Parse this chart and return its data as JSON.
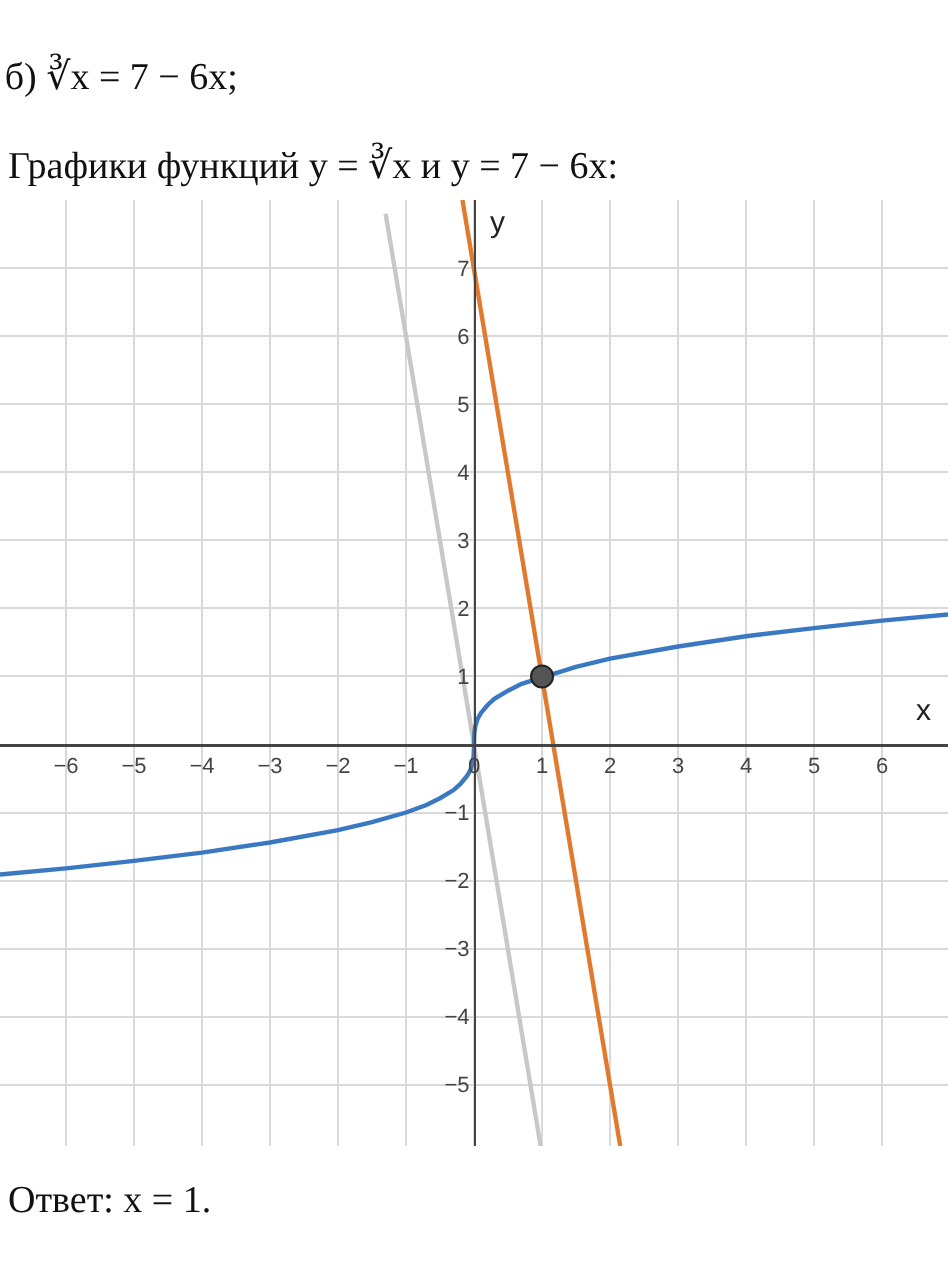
{
  "chart_data": {
    "type": "line",
    "title": "б) ∛x = 7 − 6x;",
    "subtitle": "Графики функций y = ∛x и y = 7 − 6x:",
    "annotations": [
      "Ответ: x = 1."
    ],
    "xlabel": "x",
    "ylabel": "y",
    "xlim": [
      -6.97,
      6.97
    ],
    "ylim": [
      -5.9,
      8
    ],
    "xticks": [
      -6,
      -5,
      -4,
      -3,
      -2,
      -1,
      0,
      1,
      2,
      3,
      4,
      5,
      6
    ],
    "yticks": [
      -5,
      -4,
      -3,
      -2,
      -1,
      1,
      2,
      3,
      4,
      5,
      6,
      7
    ],
    "grid": true,
    "marker": "none",
    "line_style": "solid",
    "series": [
      {
        "color": "#c8c8c8",
        "x": [
          -1.3,
          0.98
        ],
        "values": [
          7.8,
          -5.9
        ]
      },
      {
        "color": "#e07a2e",
        "x": [
          -0.17,
          2.15
        ],
        "values": [
          8,
          -5.9
        ]
      },
      {
        "color": "#3a78c2",
        "x": [
          -6.97,
          -6,
          -5,
          -4,
          -3,
          -2,
          -1.5,
          -1,
          -0.7,
          -0.5,
          -0.3,
          -0.2,
          -0.1,
          -0.05,
          -0.02,
          -0.005,
          0,
          0.005,
          0.02,
          0.05,
          0.1,
          0.2,
          0.3,
          0.5,
          0.7,
          1.5,
          2,
          3,
          4,
          5,
          6,
          6.97
        ],
        "values": [
          -1.91,
          -1.82,
          -1.71,
          -1.59,
          -1.44,
          -1.26,
          -1.14,
          -1,
          -0.89,
          -0.79,
          -0.67,
          -0.58,
          -0.46,
          -0.37,
          -0.27,
          -0.17,
          0,
          0.17,
          0.27,
          0.37,
          0.46,
          0.58,
          0.67,
          0.79,
          0.89,
          1.14,
          1.26,
          1.44,
          1.59,
          1.71,
          1.82,
          1.91
        ]
      },
      {
        "type": "scatter",
        "marker": "circle",
        "color": "#555555",
        "x": [
          1
        ],
        "values": [
          1
        ]
      }
    ]
  }
}
